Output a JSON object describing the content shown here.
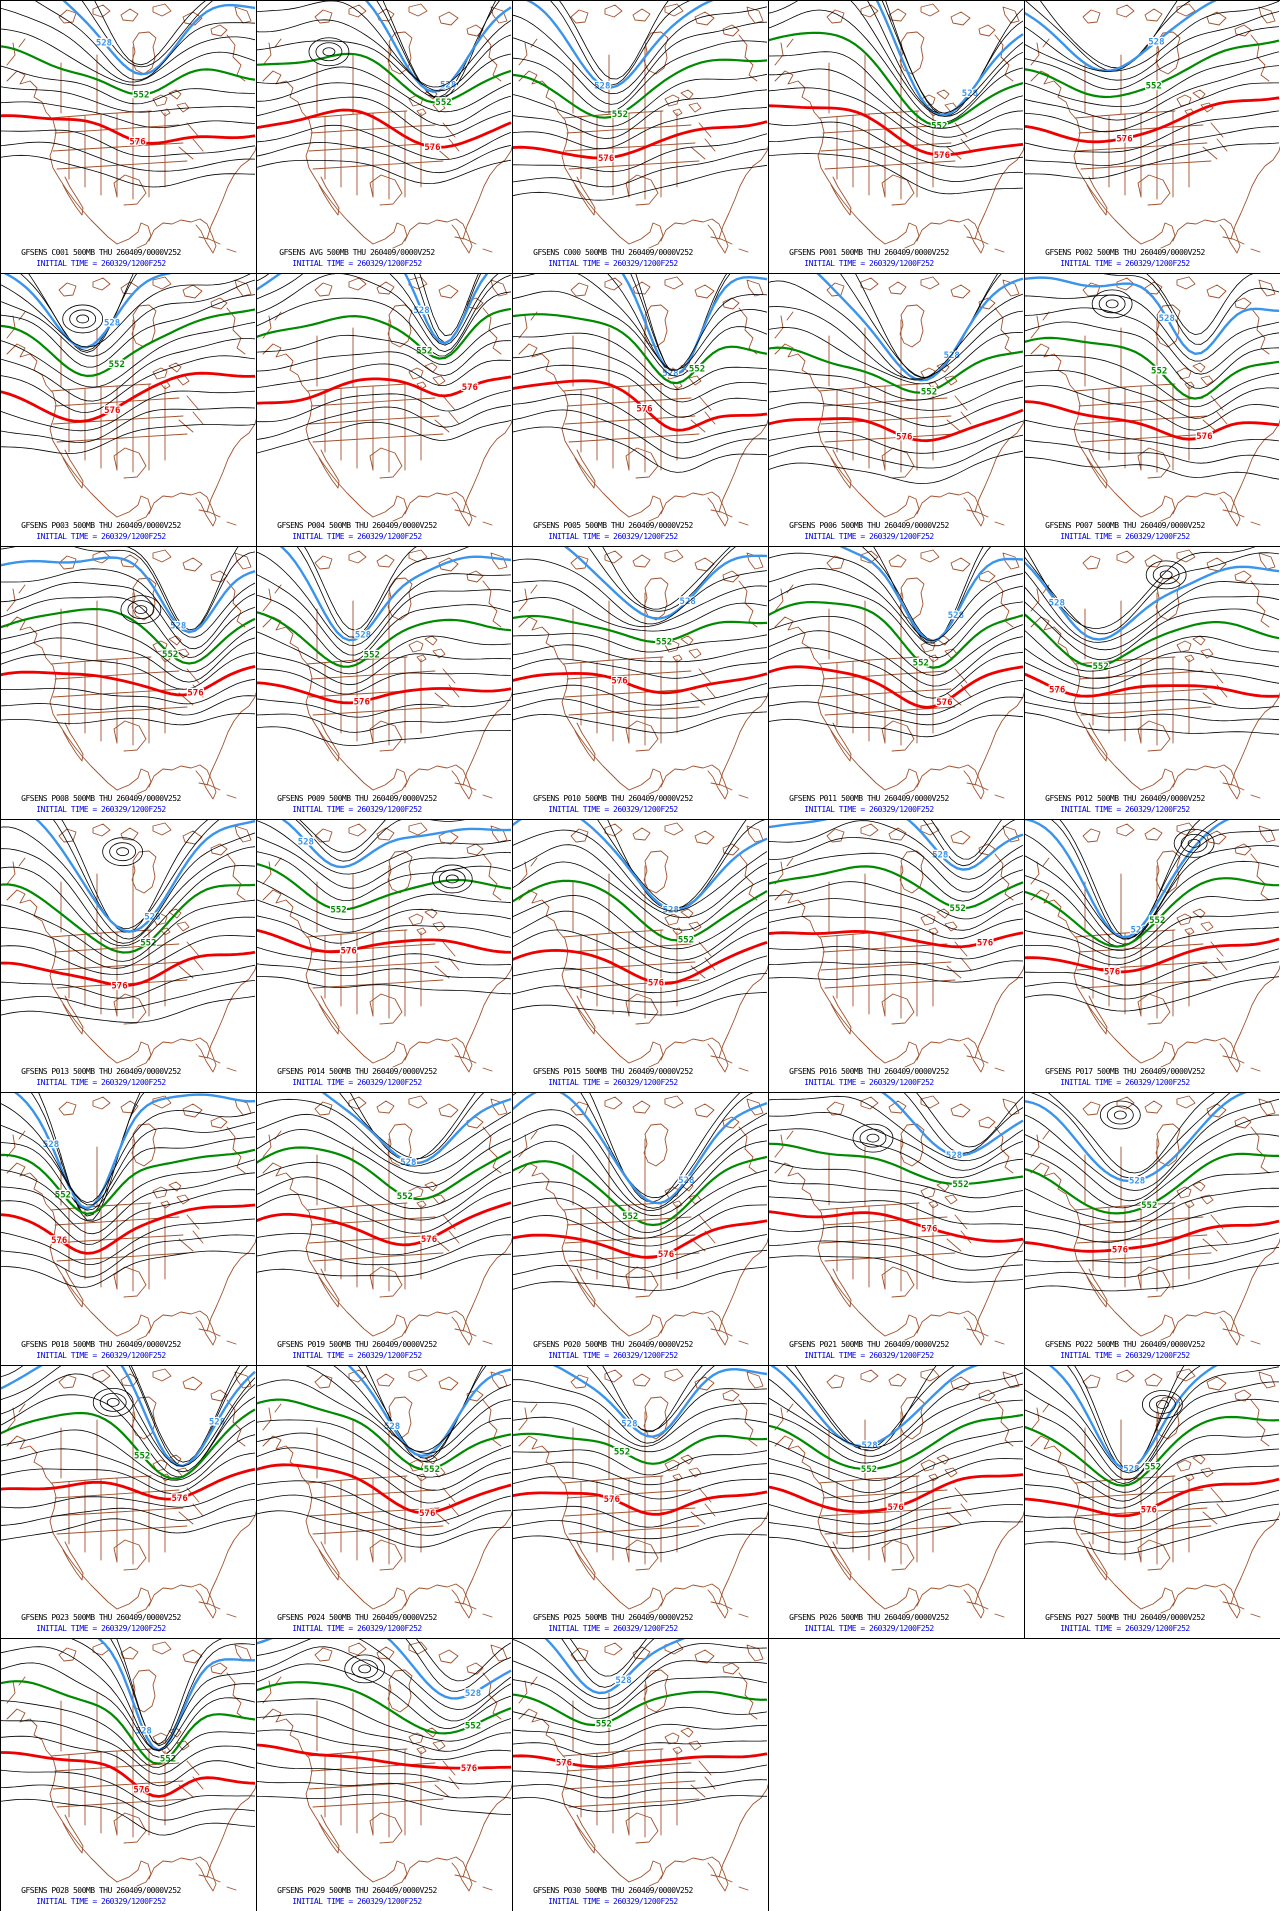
{
  "colors": {
    "contour_black": "#000000",
    "contour_blue": "#3A94EC",
    "contour_green": "#008A00",
    "contour_red": "#EE0000",
    "map_brown": "#A0522D",
    "caption_black": "#000000",
    "caption_blue": "#0000EE",
    "background": "#FFFFFF"
  },
  "contour_labels": {
    "blue": "528",
    "green": "552",
    "red": "576"
  },
  "shared": {
    "initial_time": "INITIAL TIME = 260329/1200F252"
  },
  "chart_data": {
    "type": "contour-map-grid",
    "grid": {
      "columns": 5,
      "rows": 7,
      "panel_count": 33
    },
    "field": "500MB geopotential height",
    "model": "GFSENS",
    "valid_time": "THU 260409/0000V252",
    "initial_time": "260329/1200F252",
    "contour_levels_labeled": [
      {
        "value": 528,
        "color": "blue"
      },
      {
        "value": 552,
        "color": "green"
      },
      {
        "value": 576,
        "color": "red"
      }
    ],
    "members": [
      "C001",
      "AVG",
      "C000",
      "P001",
      "P002",
      "P003",
      "P004",
      "P005",
      "P006",
      "P007",
      "P008",
      "P009",
      "P010",
      "P011",
      "P012",
      "P013",
      "P014",
      "P015",
      "P016",
      "P017",
      "P018",
      "P019",
      "P020",
      "P021",
      "P022",
      "P023",
      "P024",
      "P025",
      "P026",
      "P027",
      "P028",
      "P029",
      "P030"
    ]
  },
  "panels": [
    {
      "id": "C001",
      "caption": "GFSENS C001 500MB THU 260409/0000V252"
    },
    {
      "id": "AVG",
      "caption": "GFSENS AVG 500MB THU 260409/0000V252"
    },
    {
      "id": "C000",
      "caption": "GFSENS C000 500MB THU 260409/0000V252"
    },
    {
      "id": "P001",
      "caption": "GFSENS P001 500MB THU 260409/0000V252"
    },
    {
      "id": "P002",
      "caption": "GFSENS P002 500MB THU 260409/0000V252"
    },
    {
      "id": "P003",
      "caption": "GFSENS P003 500MB THU 260409/0000V252"
    },
    {
      "id": "P004",
      "caption": "GFSENS P004 500MB THU 260409/0000V252"
    },
    {
      "id": "P005",
      "caption": "GFSENS P005 500MB THU 260409/0000V252"
    },
    {
      "id": "P006",
      "caption": "GFSENS P006 500MB THU 260409/0000V252"
    },
    {
      "id": "P007",
      "caption": "GFSENS P007 500MB THU 260409/0000V252"
    },
    {
      "id": "P008",
      "caption": "GFSENS P008 500MB THU 260409/0000V252"
    },
    {
      "id": "P009",
      "caption": "GFSENS P009 500MB THU 260409/0000V252"
    },
    {
      "id": "P010",
      "caption": "GFSENS P010 500MB THU 260409/0000V252"
    },
    {
      "id": "P011",
      "caption": "GFSENS P011 500MB THU 260409/0000V252"
    },
    {
      "id": "P012",
      "caption": "GFSENS P012 500MB THU 260409/0000V252"
    },
    {
      "id": "P013",
      "caption": "GFSENS P013 500MB THU 260409/0000V252"
    },
    {
      "id": "P014",
      "caption": "GFSENS P014 500MB THU 260409/0000V252"
    },
    {
      "id": "P015",
      "caption": "GFSENS P015 500MB THU 260409/0000V252"
    },
    {
      "id": "P016",
      "caption": "GFSENS P016 500MB THU 260409/0000V252"
    },
    {
      "id": "P017",
      "caption": "GFSENS P017 500MB THU 260409/0000V252"
    },
    {
      "id": "P018",
      "caption": "GFSENS P018 500MB THU 260409/0000V252"
    },
    {
      "id": "P019",
      "caption": "GFSENS P019 500MB THU 260409/0000V252"
    },
    {
      "id": "P020",
      "caption": "GFSENS P020 500MB THU 260409/0000V252"
    },
    {
      "id": "P021",
      "caption": "GFSENS P021 500MB THU 260409/0000V252"
    },
    {
      "id": "P022",
      "caption": "GFSENS P022 500MB THU 260409/0000V252"
    },
    {
      "id": "P023",
      "caption": "GFSENS P023 500MB THU 260409/0000V252"
    },
    {
      "id": "P024",
      "caption": "GFSENS P024 500MB THU 260409/0000V252"
    },
    {
      "id": "P025",
      "caption": "GFSENS P025 500MB THU 260409/0000V252"
    },
    {
      "id": "P026",
      "caption": "GFSENS P026 500MB THU 260409/0000V252"
    },
    {
      "id": "P027",
      "caption": "GFSENS P027 500MB THU 260409/0000V252"
    },
    {
      "id": "P028",
      "caption": "GFSENS P028 500MB THU 260409/0000V252"
    },
    {
      "id": "P029",
      "caption": "GFSENS P029 500MB THU 260409/0000V252"
    },
    {
      "id": "P030",
      "caption": "GFSENS P030 500MB THU 260409/0000V252"
    }
  ]
}
